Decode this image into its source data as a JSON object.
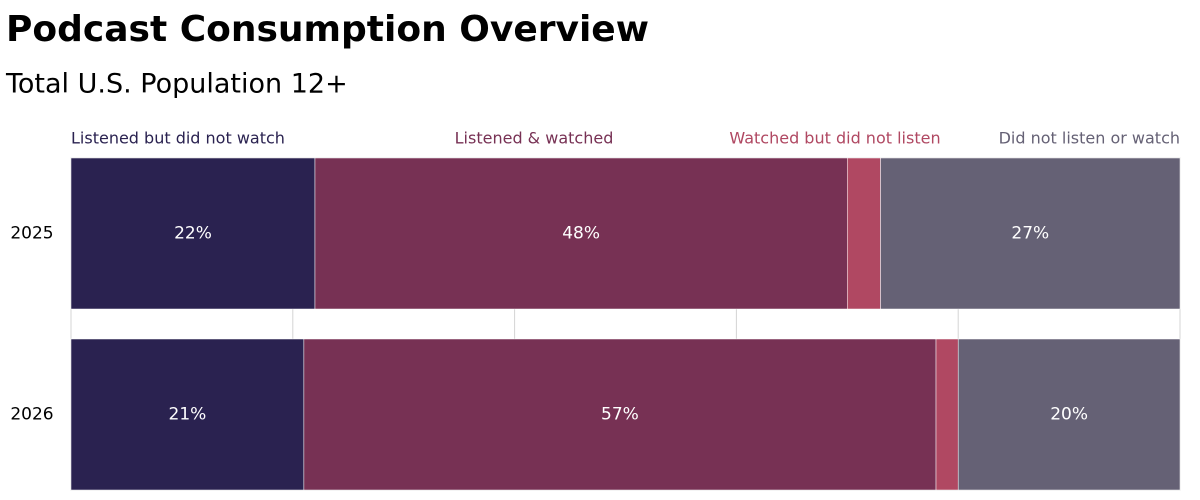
{
  "chart_data": {
    "type": "stacked-bar-horizontal",
    "title": "Podcast Consumption Overview",
    "subtitle": "Total U.S. Population 12+",
    "categories": [
      "2025",
      "2026"
    ],
    "series": [
      {
        "name": "Listened but did not watch",
        "color": "#2a2250",
        "values": [
          22,
          21
        ],
        "value_labels": [
          "22%",
          "21%"
        ]
      },
      {
        "name": "Listened & watched",
        "color": "#773154",
        "values": [
          48,
          57
        ],
        "value_labels": [
          "48%",
          "57%"
        ]
      },
      {
        "name": "Watched but did not listen",
        "color": "#b04862",
        "values": [
          3,
          2
        ],
        "value_labels": [
          null,
          null
        ]
      },
      {
        "name": "Did not listen or watch",
        "color": "#656175",
        "values": [
          27,
          20
        ],
        "value_labels": [
          "27%",
          "20%"
        ]
      }
    ],
    "xlim": [
      0,
      100
    ],
    "xticks": [
      0,
      20,
      40,
      60,
      80,
      100
    ],
    "grid": true
  }
}
